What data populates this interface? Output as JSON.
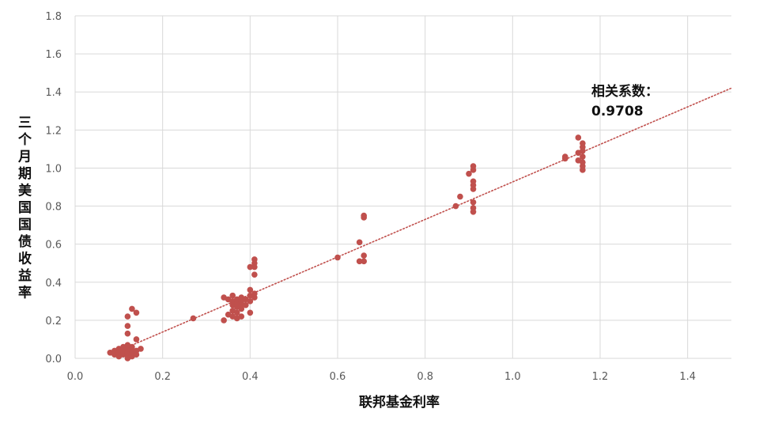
{
  "chart_data": {
    "type": "scatter",
    "title": "",
    "xlabel": "联邦基金利率",
    "ylabel": "三个月期美国国债收益率",
    "xlim": [
      0,
      1.5
    ],
    "ylim": [
      0,
      1.8
    ],
    "xticks": [
      0.0,
      0.2,
      0.4,
      0.6,
      0.8,
      1.0,
      1.2,
      1.4
    ],
    "xtick_labels": [
      "0.0",
      "0.2",
      "0.4",
      "0.6",
      "0.8",
      "1.0",
      "1.2",
      "1.4"
    ],
    "yticks": [
      0.0,
      0.2,
      0.4,
      0.6,
      0.8,
      1.0,
      1.2,
      1.4,
      1.6,
      1.8
    ],
    "ytick_labels": [
      "0.0",
      "0.2",
      "0.4",
      "0.6",
      "0.8",
      "1.0",
      "1.2",
      "1.4",
      "1.6",
      "1.8"
    ],
    "grid": true,
    "legend": "none",
    "marker_color": "#c0504d",
    "trendline": {
      "x": [
        0.08,
        1.5
      ],
      "y": [
        0.02,
        1.42
      ],
      "style": "dotted",
      "color": "#c0504d"
    },
    "annotation": {
      "line1": "相关系数：",
      "line2": "0.9708"
    },
    "points": [
      [
        0.08,
        0.03
      ],
      [
        0.09,
        0.02
      ],
      [
        0.09,
        0.04
      ],
      [
        0.1,
        0.01
      ],
      [
        0.1,
        0.03
      ],
      [
        0.1,
        0.05
      ],
      [
        0.11,
        0.02
      ],
      [
        0.11,
        0.04
      ],
      [
        0.11,
        0.06
      ],
      [
        0.12,
        0.0
      ],
      [
        0.12,
        0.02
      ],
      [
        0.12,
        0.03
      ],
      [
        0.12,
        0.05
      ],
      [
        0.12,
        0.07
      ],
      [
        0.12,
        0.13
      ],
      [
        0.12,
        0.17
      ],
      [
        0.12,
        0.22
      ],
      [
        0.13,
        0.01
      ],
      [
        0.13,
        0.03
      ],
      [
        0.13,
        0.04
      ],
      [
        0.13,
        0.06
      ],
      [
        0.13,
        0.26
      ],
      [
        0.14,
        0.02
      ],
      [
        0.14,
        0.04
      ],
      [
        0.14,
        0.1
      ],
      [
        0.14,
        0.24
      ],
      [
        0.15,
        0.05
      ],
      [
        0.27,
        0.21
      ],
      [
        0.34,
        0.2
      ],
      [
        0.34,
        0.32
      ],
      [
        0.35,
        0.23
      ],
      [
        0.35,
        0.31
      ],
      [
        0.36,
        0.22
      ],
      [
        0.36,
        0.25
      ],
      [
        0.36,
        0.28
      ],
      [
        0.36,
        0.3
      ],
      [
        0.36,
        0.33
      ],
      [
        0.37,
        0.21
      ],
      [
        0.37,
        0.24
      ],
      [
        0.37,
        0.27
      ],
      [
        0.37,
        0.29
      ],
      [
        0.37,
        0.31
      ],
      [
        0.38,
        0.22
      ],
      [
        0.38,
        0.26
      ],
      [
        0.38,
        0.28
      ],
      [
        0.38,
        0.3
      ],
      [
        0.38,
        0.32
      ],
      [
        0.39,
        0.28
      ],
      [
        0.39,
        0.31
      ],
      [
        0.4,
        0.24
      ],
      [
        0.4,
        0.3
      ],
      [
        0.4,
        0.33
      ],
      [
        0.4,
        0.36
      ],
      [
        0.4,
        0.48
      ],
      [
        0.41,
        0.32
      ],
      [
        0.41,
        0.34
      ],
      [
        0.41,
        0.44
      ],
      [
        0.41,
        0.48
      ],
      [
        0.41,
        0.5
      ],
      [
        0.41,
        0.52
      ],
      [
        0.6,
        0.53
      ],
      [
        0.65,
        0.51
      ],
      [
        0.65,
        0.61
      ],
      [
        0.66,
        0.51
      ],
      [
        0.66,
        0.54
      ],
      [
        0.66,
        0.74
      ],
      [
        0.66,
        0.75
      ],
      [
        0.87,
        0.8
      ],
      [
        0.88,
        0.85
      ],
      [
        0.9,
        0.97
      ],
      [
        0.91,
        0.77
      ],
      [
        0.91,
        0.79
      ],
      [
        0.91,
        0.82
      ],
      [
        0.91,
        0.89
      ],
      [
        0.91,
        0.91
      ],
      [
        0.91,
        0.93
      ],
      [
        0.91,
        0.99
      ],
      [
        0.91,
        1.01
      ],
      [
        1.12,
        1.05
      ],
      [
        1.12,
        1.06
      ],
      [
        1.15,
        1.04
      ],
      [
        1.15,
        1.08
      ],
      [
        1.15,
        1.16
      ],
      [
        1.16,
        0.99
      ],
      [
        1.16,
        1.01
      ],
      [
        1.16,
        1.03
      ],
      [
        1.16,
        1.06
      ],
      [
        1.16,
        1.09
      ],
      [
        1.16,
        1.11
      ],
      [
        1.16,
        1.13
      ]
    ]
  }
}
